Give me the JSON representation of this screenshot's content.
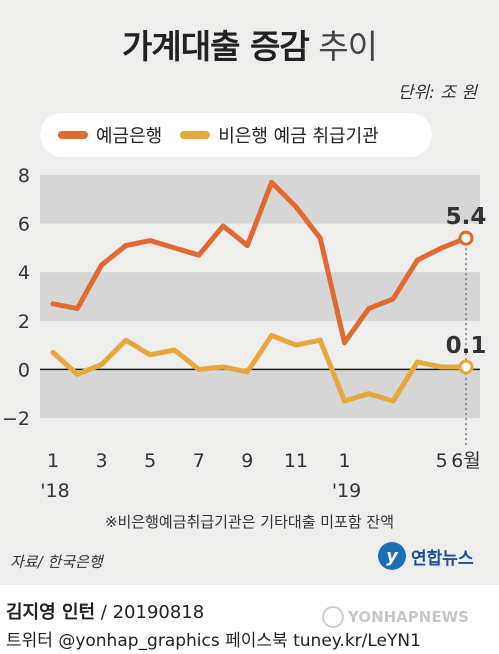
{
  "title": {
    "bold": "가계대출 증감",
    "light": "추이"
  },
  "unit": "단위: 조 원",
  "colors": {
    "deposit_bank": "#e06a2f",
    "non_bank": "#e5a83c",
    "panel": "#eeeeec",
    "band": "#d6d6d6",
    "axis_text": "#333333"
  },
  "chart_data": {
    "type": "line",
    "x": [
      "2018-01",
      "2018-02",
      "2018-03",
      "2018-04",
      "2018-05",
      "2018-06",
      "2018-07",
      "2018-08",
      "2018-09",
      "2018-10",
      "2018-11",
      "2018-12",
      "2019-01",
      "2019-02",
      "2019-03",
      "2019-04",
      "2019-05",
      "2019-06"
    ],
    "x_tick_labels": [
      "1",
      "",
      "3",
      "",
      "5",
      "",
      "7",
      "",
      "9",
      "",
      "11",
      "",
      "1",
      "",
      "",
      "",
      "5",
      "6월"
    ],
    "year_labels": [
      {
        "index": 0,
        "label": "'18"
      },
      {
        "index": 12,
        "label": "'19"
      }
    ],
    "ylim": [
      -2,
      8
    ],
    "yticks": [
      -2,
      0,
      2,
      4,
      6,
      8
    ],
    "series": [
      {
        "name": "예금은행",
        "values": [
          2.7,
          2.5,
          4.3,
          5.1,
          5.3,
          5.0,
          4.7,
          5.9,
          5.1,
          7.7,
          6.7,
          5.4,
          1.1,
          2.5,
          2.9,
          4.5,
          5.0,
          5.4
        ],
        "end_label": "5.4"
      },
      {
        "name": "비은행 예금 취급기관",
        "values": [
          0.7,
          -0.2,
          0.2,
          1.2,
          0.6,
          0.8,
          0.0,
          0.1,
          -0.1,
          1.4,
          1.0,
          1.2,
          -1.3,
          -1.0,
          -1.3,
          0.3,
          0.1,
          0.1
        ],
        "end_label": "0.1"
      }
    ],
    "grid": false
  },
  "footnote": "※비은행예금취급기관은 기타대출 미포함 잔액",
  "source": "자료/ 한국은행",
  "logo": {
    "mark": "y",
    "text": "연합뉴스"
  },
  "credit": {
    "name": "김지영 인턴",
    "date": " / 20190818"
  },
  "twitter": "트위터 @yonhap_graphics  페이스북 tuney.kr/LeYN1",
  "watermark": "YONHAPNEWS"
}
